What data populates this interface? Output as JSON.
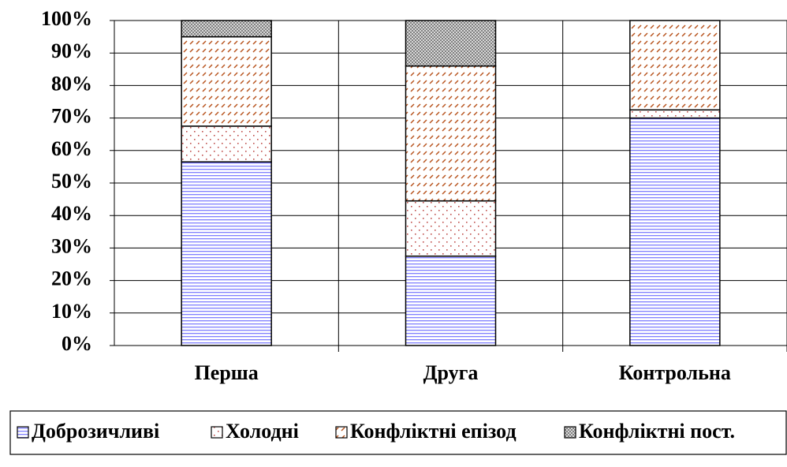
{
  "chart_data": {
    "type": "stacked-bar",
    "categories": [
      "Перша",
      "Друга",
      "Контрольна"
    ],
    "series": [
      {
        "name": "Доброзичливі",
        "color": "#8080ff",
        "pattern": "horizontal-lines",
        "values": [
          56.5,
          27.5,
          70
        ]
      },
      {
        "name": "Холодні",
        "color": "#c0504d",
        "pattern": "dots",
        "values": [
          11,
          17,
          2.5
        ]
      },
      {
        "name": "Конфліктні епізод",
        "color": "#b8541e",
        "pattern": "diagonal-dashes",
        "values": [
          27.5,
          41.5,
          27.5
        ]
      },
      {
        "name": "Конфліктні пост.",
        "color": "#808080",
        "pattern": "checker",
        "values": [
          5,
          14,
          0
        ]
      }
    ],
    "ylim": [
      0,
      100
    ],
    "yticks": [
      {
        "value": 0,
        "label": "0%"
      },
      {
        "value": 10,
        "label": "10%"
      },
      {
        "value": 20,
        "label": "20%"
      },
      {
        "value": 30,
        "label": "30%"
      },
      {
        "value": 40,
        "label": "40%"
      },
      {
        "value": 50,
        "label": "50%"
      },
      {
        "value": 60,
        "label": "60%"
      },
      {
        "value": 70,
        "label": "70%"
      },
      {
        "value": 80,
        "label": "80%"
      },
      {
        "value": 90,
        "label": "90%"
      },
      {
        "value": 100,
        "label": "100%"
      }
    ],
    "grid": true,
    "legend": "bottom"
  }
}
